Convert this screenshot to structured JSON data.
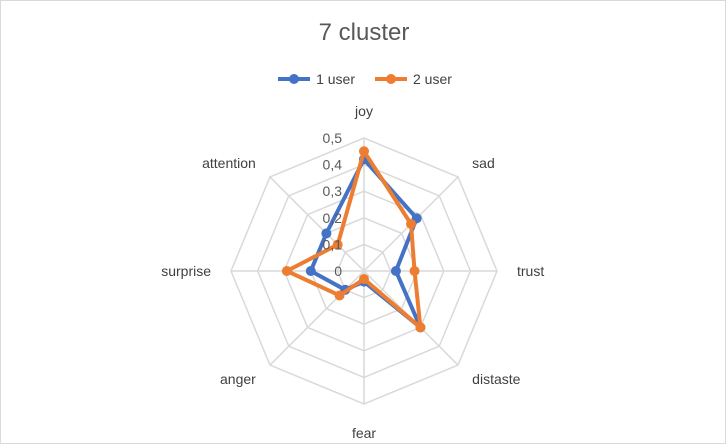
{
  "chart_data": {
    "type": "radar",
    "title": "7 cluster",
    "categories": [
      "joy",
      "sad",
      "trust",
      "distaste",
      "fear",
      "anger",
      "surprise",
      "attention"
    ],
    "series": [
      {
        "name": "1 user",
        "color": "#4472C4",
        "values": [
          0.42,
          0.28,
          0.12,
          0.3,
          0.04,
          0.1,
          0.2,
          0.2
        ]
      },
      {
        "name": "2 user",
        "color": "#ED7D31",
        "values": [
          0.45,
          0.25,
          0.19,
          0.3,
          0.03,
          0.13,
          0.29,
          0.14
        ]
      }
    ],
    "rlim": [
      0,
      0.5
    ],
    "ticks": [
      "0",
      "0,1",
      "0,2",
      "0,3",
      "0,4",
      "0,5"
    ],
    "legend_position": "top",
    "grid": true
  }
}
